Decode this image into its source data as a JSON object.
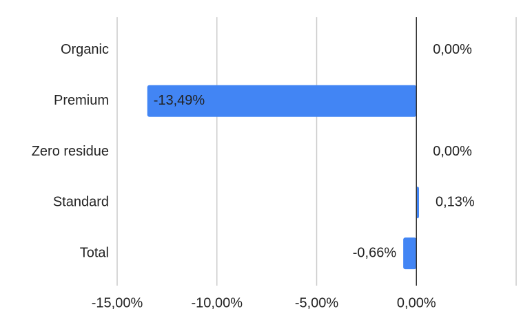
{
  "chart_data": {
    "type": "hbar",
    "categories": [
      "Organic",
      "Premium",
      "Zero residue",
      "Standard",
      "Total"
    ],
    "values": [
      0,
      -13.49,
      0,
      0.13,
      -0.66
    ],
    "value_labels": [
      "0,00%",
      "-13,49%",
      "0,00%",
      "0,13%",
      "-0,66%"
    ],
    "color": "#4285f4",
    "xlim": [
      -15,
      5
    ],
    "xticks": [
      {
        "value": -15,
        "label": "-15,00%"
      },
      {
        "value": -10,
        "label": "-10,00%"
      },
      {
        "value": -5,
        "label": "-5,00%"
      },
      {
        "value": 0,
        "label": "0,00%"
      }
    ],
    "grid": true
  }
}
